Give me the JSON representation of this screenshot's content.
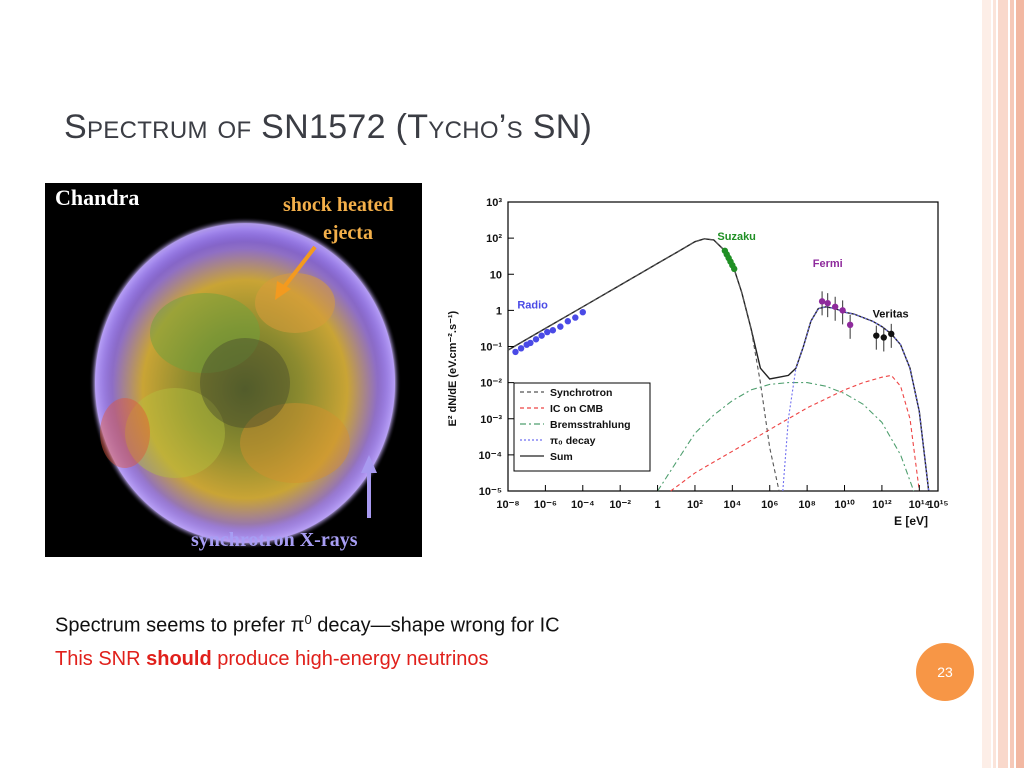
{
  "slide": {
    "title": "Spectrum of SN1572 (Tycho’s SN)",
    "page_number": "23",
    "accent_color": "#f79646"
  },
  "photo": {
    "label_chandra": "Chandra",
    "label_ejecta_line1": "shock heated",
    "label_ejecta_line2": "ejecta",
    "label_synchrotron": "synchrotron X-rays"
  },
  "body": {
    "line1_prefix": "Spectrum seems to prefer π",
    "line1_sup": "0",
    "line1_suffix": " decay—shape wrong for IC",
    "line2_prefix": "This SNR ",
    "line2_bold": "should",
    "line2_suffix": " produce high-energy neutrinos"
  },
  "chart_data": {
    "type": "line",
    "ylabel": "E² dN/dE (eV.cm⁻².s⁻¹)",
    "xlabel": "E [eV]",
    "log_x": true,
    "log_y": true,
    "xlim_exp": [
      -8,
      15
    ],
    "ylim_exp": [
      -5,
      3
    ],
    "x_tick_labels": [
      "10⁻⁸",
      "10⁻⁶",
      "10⁻⁴",
      "10⁻²",
      "1",
      "10²",
      "10⁴",
      "10⁶",
      "10⁸",
      "10¹⁰",
      "10¹²",
      "10¹⁴",
      "10¹⁵"
    ],
    "x_tick_exps": [
      -8,
      -6,
      -4,
      -2,
      0,
      2,
      4,
      6,
      8,
      10,
      12,
      14,
      15
    ],
    "y_tick_labels": [
      "10³",
      "10²",
      "10",
      "1",
      "10⁻¹",
      "10⁻²",
      "10⁻³",
      "10⁻⁴",
      "10⁻⁵"
    ],
    "y_tick_exps": [
      3,
      2,
      1,
      0,
      -1,
      -2,
      -3,
      -4,
      -5
    ],
    "data_group_labels": [
      {
        "text": "Radio",
        "x": -7.5,
        "y": 0.05,
        "color": "#4a4ae6"
      },
      {
        "text": "Suzaku",
        "x": 3.2,
        "y": 1.95,
        "color": "#1f8f24"
      },
      {
        "text": "Fermi",
        "x": 8.3,
        "y": 1.2,
        "color": "#8e2a9c"
      },
      {
        "text": "Veritas",
        "x": 11.5,
        "y": -0.2,
        "color": "#111111"
      }
    ],
    "legend": {
      "position": "bottom-left",
      "entries": [
        {
          "name": "Synchrotron",
          "color": "#555555",
          "dash": "4,3"
        },
        {
          "name": "IC on CMB",
          "color": "#ee4444",
          "dash": "4,3"
        },
        {
          "name": "Bremsstrahlung",
          "color": "#4f9f6f",
          "dash": "6,3,2,3"
        },
        {
          "name": "π₀ decay",
          "color": "#6f6ff0",
          "dash": "2,2"
        },
        {
          "name": "Sum",
          "color": "#222222",
          "dash": ""
        }
      ]
    },
    "series": [
      {
        "name": "Sum",
        "color": "#222222",
        "dash": "",
        "x": [
          -8,
          -6,
          -4,
          -2,
          0,
          1,
          2,
          2.5,
          3,
          3.5,
          4,
          4.5,
          5,
          5.5,
          6,
          6.5,
          7,
          7.4,
          7.8,
          8.2,
          8.6,
          9,
          9.5,
          10,
          10.5,
          11,
          11.5,
          12,
          12.5,
          13,
          13.5,
          14,
          14.5
        ],
        "y": [
          -1.1,
          -0.5,
          0.1,
          0.7,
          1.3,
          1.6,
          1.9,
          1.98,
          1.95,
          1.7,
          1.3,
          0.5,
          -0.5,
          -1.6,
          -1.9,
          -1.85,
          -1.8,
          -1.6,
          -1.0,
          -0.3,
          0.05,
          0.1,
          0.05,
          -0.05,
          -0.1,
          -0.2,
          -0.3,
          -0.45,
          -0.65,
          -0.95,
          -1.6,
          -2.8,
          -5
        ]
      },
      {
        "name": "Synchrotron",
        "color": "#555555",
        "dash": "4,3",
        "x": [
          -8,
          -6,
          -4,
          -2,
          0,
          1,
          2,
          2.5,
          3,
          3.5,
          4,
          4.5,
          5,
          5.5,
          6,
          6.5
        ],
        "y": [
          -1.1,
          -0.5,
          0.1,
          0.7,
          1.3,
          1.6,
          1.9,
          1.98,
          1.95,
          1.7,
          1.3,
          0.5,
          -0.5,
          -2.0,
          -3.8,
          -5
        ]
      },
      {
        "name": "IC on CMB",
        "color": "#ee4444",
        "dash": "4,3",
        "x": [
          0.7,
          2,
          4,
          6,
          8,
          10,
          11,
          12,
          12.5,
          13,
          13.5,
          14
        ],
        "y": [
          -5,
          -4.5,
          -3.9,
          -3.3,
          -2.7,
          -2.2,
          -2.0,
          -1.85,
          -1.8,
          -2.1,
          -3.0,
          -5
        ]
      },
      {
        "name": "Bremsstrahlung",
        "color": "#4f9f6f",
        "dash": "6,3,2,3",
        "x": [
          0,
          1,
          2,
          3,
          4,
          5,
          6,
          7,
          8,
          9,
          10,
          11,
          12,
          13,
          13.7
        ],
        "y": [
          -5,
          -4.2,
          -3.4,
          -2.9,
          -2.5,
          -2.2,
          -2.05,
          -2.0,
          -2.0,
          -2.1,
          -2.3,
          -2.6,
          -3.1,
          -4.0,
          -5
        ]
      },
      {
        "name": "π₀ decay",
        "color": "#6f6ff0",
        "dash": "2,2",
        "x": [
          6.7,
          7.0,
          7.4,
          7.8,
          8.2,
          8.6,
          9,
          9.5,
          10,
          10.5,
          11,
          11.5,
          12,
          12.5,
          13,
          13.5,
          14,
          14.5
        ],
        "y": [
          -5,
          -3.0,
          -1.6,
          -1.0,
          -0.3,
          0.05,
          0.1,
          0.05,
          -0.05,
          -0.1,
          -0.2,
          -0.3,
          -0.45,
          -0.65,
          -0.95,
          -1.6,
          -2.8,
          -5
        ]
      }
    ],
    "points": [
      {
        "group": "Radio",
        "color": "#4a4ae6",
        "x": [
          -7.6,
          -7.3,
          -7.0,
          -6.8,
          -6.5,
          -6.2,
          -5.9,
          -5.6,
          -5.2,
          -4.8,
          -4.4,
          -4.0
        ],
        "y": [
          -1.15,
          -1.05,
          -0.95,
          -0.9,
          -0.8,
          -0.7,
          -0.6,
          -0.55,
          -0.45,
          -0.3,
          -0.2,
          -0.05
        ]
      },
      {
        "group": "Suzaku",
        "color": "#1f8f24",
        "x": [
          3.6,
          3.7,
          3.8,
          3.9,
          4.0,
          4.1
        ],
        "y": [
          1.65,
          1.55,
          1.45,
          1.35,
          1.25,
          1.15
        ]
      },
      {
        "group": "Fermi",
        "color": "#8e2a9c",
        "x": [
          8.8,
          9.1,
          9.5,
          9.9,
          10.3
        ],
        "y": [
          0.25,
          0.2,
          0.1,
          0,
          -0.4
        ]
      },
      {
        "group": "Veritas",
        "color": "#111111",
        "x": [
          11.7,
          12.1,
          12.5
        ],
        "y": [
          -0.7,
          -0.75,
          -0.65
        ]
      }
    ]
  }
}
